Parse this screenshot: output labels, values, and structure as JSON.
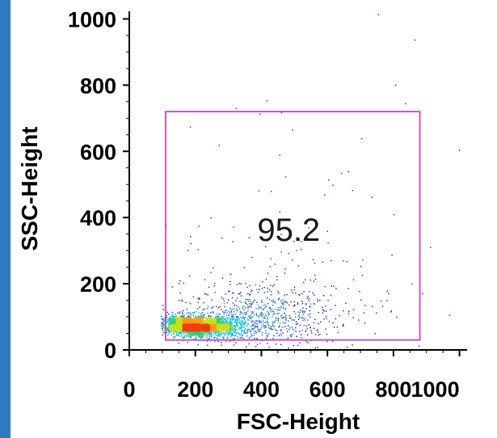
{
  "chart_data": {
    "type": "scatter",
    "subtype": "flow-cytometry density dot plot",
    "xlabel": "FSC-Height",
    "ylabel": "SSC-Height",
    "xlim": [
      0,
      1023
    ],
    "ylim": [
      0,
      1023
    ],
    "xticks": [
      0,
      200,
      400,
      600,
      800,
      1000
    ],
    "yticks": [
      0,
      200,
      400,
      600,
      800,
      1000
    ],
    "grid": false,
    "density_colormap": [
      "#1a1aa8",
      "#1d6fe0",
      "#19c0d8",
      "#2ed07a",
      "#c8e01a",
      "#ff9a14",
      "#f03c10"
    ],
    "populations": [
      {
        "cx": 230,
        "cy": 70,
        "sx": 70,
        "sy": 16,
        "n": 1300
      },
      {
        "cx": 180,
        "cy": 80,
        "sx": 45,
        "sy": 14,
        "n": 900
      },
      {
        "cx": 380,
        "cy": 100,
        "sx": 120,
        "sy": 40,
        "n": 650
      },
      {
        "cx": 450,
        "cy": 170,
        "sx": 180,
        "sy": 90,
        "n": 180
      },
      {
        "cx": 500,
        "cy": 400,
        "sx": 300,
        "sy": 260,
        "n": 55
      }
    ],
    "gate": {
      "type": "rectangle",
      "x": [
        110,
        880
      ],
      "y": [
        30,
        720
      ],
      "label": "95.2",
      "color": "#d040d0"
    }
  }
}
